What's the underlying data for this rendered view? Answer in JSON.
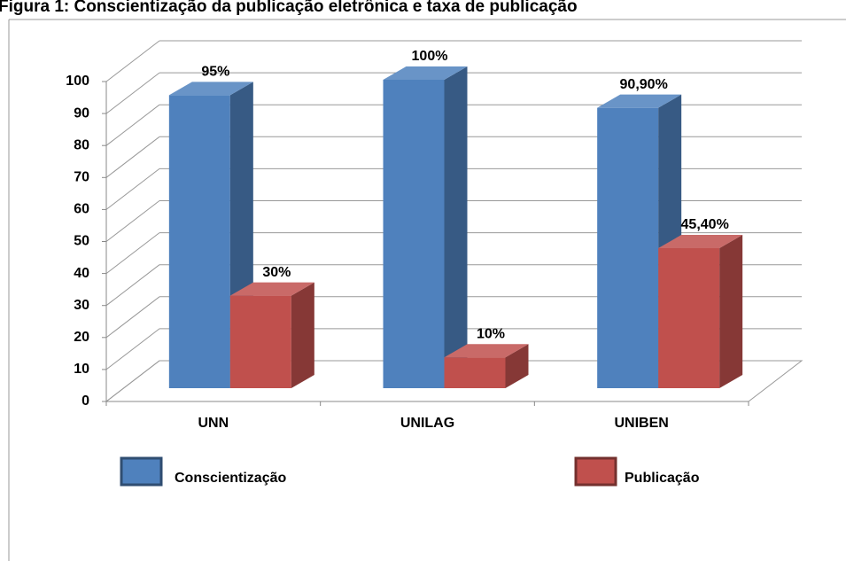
{
  "chart_data": {
    "type": "bar3d",
    "title": "Figura 1: Conscientização da publicação eletrônica e taxa de publicação",
    "categories": [
      "UNN",
      "UNILAG",
      "UNIBEN"
    ],
    "series": [
      {
        "name": "Conscientização",
        "color": "#4f81bd",
        "values": [
          95,
          100,
          90.9
        ],
        "value_labels": [
          "95%",
          "100%",
          "90,90%"
        ]
      },
      {
        "name": "Publicação",
        "color": "#c0504d",
        "values": [
          30,
          10,
          45.4
        ],
        "value_labels": [
          "30%",
          "10%",
          "45,40%"
        ]
      }
    ],
    "ylim": [
      0,
      100
    ],
    "yticks": [
      0,
      10,
      20,
      30,
      40,
      50,
      60,
      70,
      80,
      90,
      100
    ],
    "grid": true
  }
}
